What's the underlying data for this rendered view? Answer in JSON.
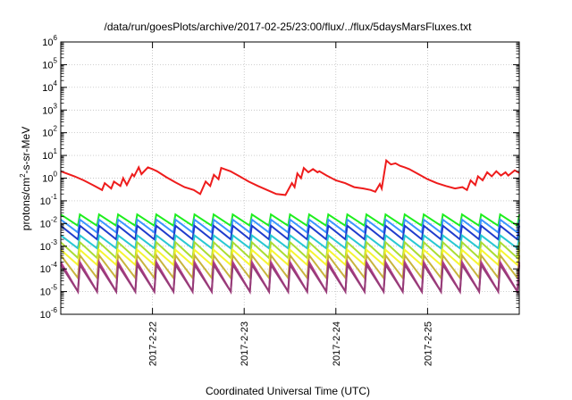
{
  "chart_data": {
    "type": "line",
    "title": "/data/run/goesPlots/archive/2017-02-25/23:00/flux/../flux/5daysMarsFluxes.txt",
    "xlabel": "Coordinated Universal Time (UTC)",
    "ylabel": "protons/cm²-s-sr-MeV",
    "ylabel_parts": {
      "base": "protons/cm",
      "exp": "2",
      "rest": "-s-sr-MeV"
    },
    "xlim": [
      0,
      5
    ],
    "ylim": [
      1e-06,
      1000000.0
    ],
    "y_scale": "log",
    "grid": true,
    "legend": "none",
    "x_ticks": [
      {
        "x": 1,
        "label": "2017-2-22"
      },
      {
        "x": 2,
        "label": "2017-2-23"
      },
      {
        "x": 3,
        "label": "2017-2-24"
      },
      {
        "x": 4,
        "label": "2017-2-25"
      }
    ],
    "y_ticks": [
      {
        "exp": -6,
        "base": "10",
        "sup": "-6"
      },
      {
        "exp": -5,
        "base": "10",
        "sup": "-5"
      },
      {
        "exp": -4,
        "base": "10",
        "sup": "-4"
      },
      {
        "exp": -3,
        "base": "10",
        "sup": "-3"
      },
      {
        "exp": -2,
        "base": "10",
        "sup": "-2"
      },
      {
        "exp": -1,
        "base": "10",
        "sup": "-1"
      },
      {
        "exp": 0,
        "base": "10",
        "sup": "0"
      },
      {
        "exp": 1,
        "base": "10",
        "sup": "1"
      },
      {
        "exp": 2,
        "base": "10",
        "sup": "2"
      },
      {
        "exp": 3,
        "base": "10",
        "sup": "3"
      },
      {
        "exp": 4,
        "base": "10",
        "sup": "4"
      },
      {
        "exp": 5,
        "base": "10",
        "sup": "5"
      },
      {
        "exp": 6,
        "base": "10",
        "sup": "6"
      }
    ],
    "series": [
      {
        "color": "#ee1c1c",
        "x": [
          0,
          0.15,
          0.25,
          0.35,
          0.45,
          0.48,
          0.55,
          0.58,
          0.65,
          0.68,
          0.72,
          0.78,
          0.8,
          0.85,
          0.88,
          0.95,
          1.0,
          1.05,
          1.15,
          1.25,
          1.35,
          1.45,
          1.52,
          1.58,
          1.63,
          1.67,
          1.72,
          1.75,
          1.85,
          1.95,
          2.05,
          2.15,
          2.25,
          2.35,
          2.45,
          2.52,
          2.55,
          2.58,
          2.62,
          2.65,
          2.7,
          2.75,
          2.8,
          2.82,
          2.9,
          3.0,
          3.1,
          3.2,
          3.3,
          3.38,
          3.43,
          3.48,
          3.5,
          3.55,
          3.6,
          3.65,
          3.7,
          3.75,
          3.8,
          3.9,
          4.0,
          4.1,
          4.2,
          4.3,
          4.38,
          4.43,
          4.47,
          4.52,
          4.55,
          4.6,
          4.65,
          4.7,
          4.75,
          4.8,
          4.85,
          4.88,
          4.95,
          5.0
        ],
        "y": [
          2.0,
          1.2,
          0.8,
          0.5,
          0.3,
          0.6,
          0.35,
          0.7,
          0.45,
          1.0,
          0.5,
          1.5,
          1.2,
          3.0,
          1.5,
          3.0,
          2.5,
          2.0,
          1.1,
          0.65,
          0.4,
          0.3,
          0.2,
          0.7,
          0.45,
          1.4,
          0.9,
          2.8,
          2.0,
          1.2,
          0.7,
          0.45,
          0.3,
          0.2,
          0.18,
          0.6,
          0.4,
          1.6,
          1.0,
          2.8,
          1.8,
          2.5,
          1.8,
          2.0,
          1.3,
          0.8,
          0.6,
          0.4,
          0.35,
          0.3,
          0.25,
          0.55,
          0.35,
          6.0,
          4.0,
          4.5,
          3.5,
          3.0,
          2.5,
          1.5,
          0.9,
          0.6,
          0.45,
          0.35,
          0.4,
          0.3,
          0.8,
          0.5,
          1.2,
          0.8,
          1.8,
          1.2,
          2.0,
          1.3,
          1.8,
          1.3,
          2.2,
          1.7
        ]
      },
      {
        "color": "#1eee1e",
        "sawtooth": {
          "x0": 0,
          "x1": 5,
          "cycles": 24,
          "top": 0.025,
          "bottom": 0.008
        }
      },
      {
        "color": "#3c96ff",
        "sawtooth": {
          "x0": 0,
          "x1": 5,
          "cycles": 24,
          "top": 0.015,
          "bottom": 0.004
        }
      },
      {
        "color": "#1f3ccc",
        "sawtooth": {
          "x0": 0,
          "x1": 5,
          "cycles": 24,
          "top": 0.008,
          "bottom": 0.002
        }
      },
      {
        "color": "#28c8d2",
        "sawtooth": {
          "x0": 0,
          "x1": 5,
          "cycles": 24,
          "top": 0.003,
          "bottom": 0.0008
        }
      },
      {
        "color": "#aadc32",
        "sawtooth": {
          "x0": 0,
          "x1": 5,
          "cycles": 24,
          "top": 0.0015,
          "bottom": 0.0003
        }
      },
      {
        "color": "#f5f532",
        "sawtooth": {
          "x0": 0,
          "x1": 5,
          "cycles": 24,
          "top": 0.0007,
          "bottom": 0.00015
        }
      },
      {
        "color": "#c8b43c",
        "sawtooth": {
          "x0": 0,
          "x1": 5,
          "cycles": 24,
          "top": 0.0004,
          "bottom": 4e-05
        }
      },
      {
        "color": "#b43c8c",
        "sawtooth": {
          "x0": 0,
          "x1": 5,
          "cycles": 24,
          "top": 0.0002,
          "bottom": 1e-05
        }
      },
      {
        "color": "#963c78",
        "sawtooth": {
          "x0": 0,
          "x1": 5,
          "cycles": 24,
          "top": 0.00015,
          "bottom": 1e-05
        }
      }
    ]
  }
}
